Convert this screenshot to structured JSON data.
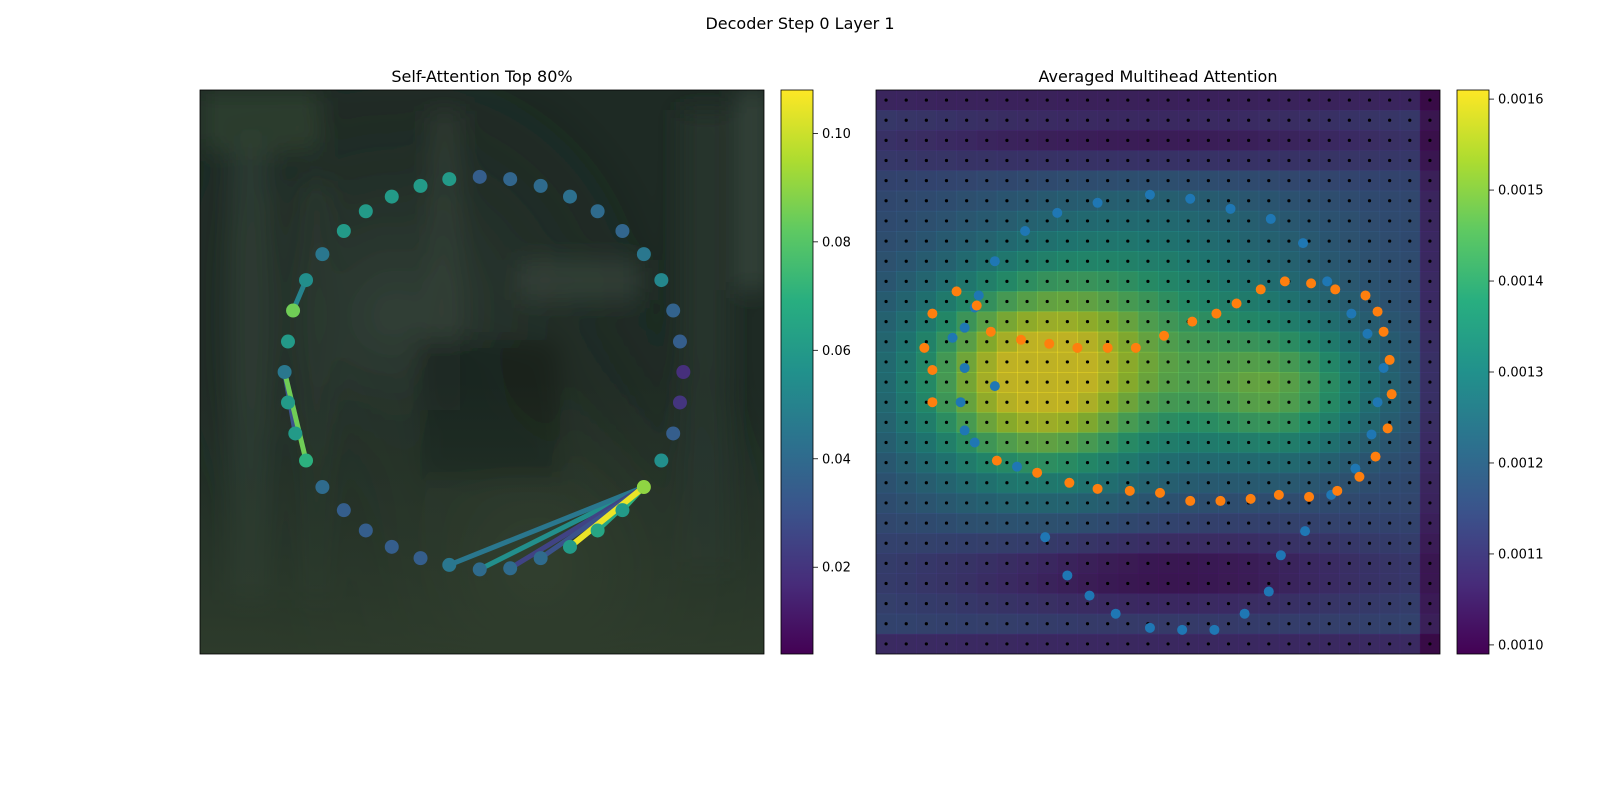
{
  "figure": {
    "suptitle": "Decoder Step 0 Layer 1"
  },
  "chart_data": [
    {
      "type": "scatter",
      "title": "Self-Attention Top 80%",
      "xlim": [
        0,
        100
      ],
      "ylim": [
        0,
        100
      ],
      "colormap": "viridis",
      "colorbar": {
        "min": 0.004,
        "max": 0.108,
        "ticks": [
          0.02,
          0.04,
          0.06,
          0.08,
          0.1
        ],
        "tick_labels": [
          "0.02",
          "0.04",
          "0.06",
          "0.08",
          "0.10"
        ]
      },
      "background": "blurred photograph (dark green scene)",
      "points": [
        {
          "x": 49.6,
          "y": 84.6,
          "v": 0.035
        },
        {
          "x": 55.0,
          "y": 84.2,
          "v": 0.038
        },
        {
          "x": 60.4,
          "y": 83.0,
          "v": 0.04
        },
        {
          "x": 65.6,
          "y": 81.1,
          "v": 0.042
        },
        {
          "x": 70.5,
          "y": 78.5,
          "v": 0.04
        },
        {
          "x": 74.9,
          "y": 75.0,
          "v": 0.038
        },
        {
          "x": 78.7,
          "y": 70.9,
          "v": 0.045
        },
        {
          "x": 81.8,
          "y": 66.3,
          "v": 0.052
        },
        {
          "x": 83.9,
          "y": 60.9,
          "v": 0.037
        },
        {
          "x": 85.1,
          "y": 55.4,
          "v": 0.035
        },
        {
          "x": 85.7,
          "y": 50.0,
          "v": 0.018
        },
        {
          "x": 85.1,
          "y": 44.6,
          "v": 0.02
        },
        {
          "x": 83.9,
          "y": 39.1,
          "v": 0.035
        },
        {
          "x": 81.8,
          "y": 34.3,
          "v": 0.055
        },
        {
          "x": 78.7,
          "y": 29.6,
          "v": 0.09
        },
        {
          "x": 74.9,
          "y": 25.5,
          "v": 0.06
        },
        {
          "x": 70.5,
          "y": 21.9,
          "v": 0.065
        },
        {
          "x": 65.6,
          "y": 19.0,
          "v": 0.06
        },
        {
          "x": 60.4,
          "y": 17.0,
          "v": 0.04
        },
        {
          "x": 55.0,
          "y": 15.2,
          "v": 0.04
        },
        {
          "x": 49.6,
          "y": 15.0,
          "v": 0.04
        },
        {
          "x": 44.2,
          "y": 15.8,
          "v": 0.045
        },
        {
          "x": 39.1,
          "y": 17.0,
          "v": 0.035
        },
        {
          "x": 34.0,
          "y": 19.0,
          "v": 0.035
        },
        {
          "x": 29.4,
          "y": 21.9,
          "v": 0.035
        },
        {
          "x": 25.5,
          "y": 25.5,
          "v": 0.035
        },
        {
          "x": 21.7,
          "y": 29.6,
          "v": 0.04
        },
        {
          "x": 18.8,
          "y": 34.3,
          "v": 0.07
        },
        {
          "x": 16.9,
          "y": 39.1,
          "v": 0.06
        },
        {
          "x": 15.6,
          "y": 44.6,
          "v": 0.06
        },
        {
          "x": 15.0,
          "y": 50.0,
          "v": 0.045
        },
        {
          "x": 15.6,
          "y": 55.4,
          "v": 0.06
        },
        {
          "x": 16.5,
          "y": 60.9,
          "v": 0.085
        },
        {
          "x": 18.8,
          "y": 66.3,
          "v": 0.055
        },
        {
          "x": 21.7,
          "y": 70.9,
          "v": 0.045
        },
        {
          "x": 25.5,
          "y": 75.0,
          "v": 0.06
        },
        {
          "x": 29.4,
          "y": 78.5,
          "v": 0.06
        },
        {
          "x": 34.0,
          "y": 81.1,
          "v": 0.06
        },
        {
          "x": 39.1,
          "y": 83.0,
          "v": 0.06
        },
        {
          "x": 44.2,
          "y": 84.2,
          "v": 0.06
        }
      ],
      "edges": [
        {
          "from": 14,
          "to": 20,
          "v": 0.055
        },
        {
          "from": 14,
          "to": 21,
          "v": 0.045
        },
        {
          "from": 14,
          "to": 19,
          "v": 0.025
        },
        {
          "from": 14,
          "to": 18,
          "v": 0.03
        },
        {
          "from": 14,
          "to": 16,
          "v": 0.065
        },
        {
          "from": 14,
          "to": 15,
          "v": 0.07
        },
        {
          "from": 14,
          "to": 17,
          "v": 0.06
        },
        {
          "from": 30,
          "to": 28,
          "v": 0.03
        },
        {
          "from": 30,
          "to": 27,
          "v": 0.085
        },
        {
          "from": 32,
          "to": 33,
          "v": 0.05
        }
      ],
      "highlight_edge": {
        "from": 14,
        "to": 17,
        "v": 0.105
      }
    },
    {
      "type": "heatmap",
      "title": "Averaged Multihead Attention",
      "xlim": [
        0,
        28
      ],
      "ylim": [
        0,
        28
      ],
      "colormap": "viridis",
      "colorbar": {
        "min": 0.00099,
        "max": 0.00161,
        "ticks": [
          0.001,
          0.0011,
          0.0012,
          0.0013,
          0.0014,
          0.0015,
          0.0016
        ],
        "tick_labels": [
          "0.0010",
          "0.0011",
          "0.0012",
          "0.0013",
          "0.0014",
          "0.0015",
          "0.0016"
        ]
      },
      "grid_points": "28x28 black dots",
      "series": [
        {
          "color": "#1f77b4",
          "points": [
            [
              3.8,
              12.3
            ],
            [
              4.4,
              11.8
            ],
            [
              4.9,
              10.8
            ],
            [
              5.9,
              14.7
            ],
            [
              7.0,
              18.7
            ],
            [
              8.4,
              22.2
            ],
            [
              9.5,
              24.1
            ],
            [
              10.6,
              25.1
            ],
            [
              11.9,
              26.0
            ],
            [
              13.6,
              26.7
            ],
            [
              15.2,
              26.8
            ],
            [
              16.8,
              26.8
            ],
            [
              18.3,
              26.0
            ],
            [
              19.5,
              24.9
            ],
            [
              20.1,
              23.1
            ],
            [
              21.3,
              21.9
            ],
            [
              22.6,
              20.1
            ],
            [
              23.8,
              18.8
            ],
            [
              24.6,
              17.1
            ],
            [
              24.9,
              15.5
            ],
            [
              25.2,
              13.8
            ],
            [
              24.4,
              12.1
            ],
            [
              23.6,
              11.1
            ],
            [
              22.4,
              9.5
            ],
            [
              21.2,
              7.6
            ],
            [
              19.6,
              6.4
            ],
            [
              17.6,
              5.9
            ],
            [
              15.6,
              5.4
            ],
            [
              13.6,
              5.2
            ],
            [
              11.0,
              5.6
            ],
            [
              9.0,
              6.1
            ],
            [
              7.4,
              7.0
            ],
            [
              5.9,
              8.5
            ],
            [
              5.1,
              10.2
            ],
            [
              4.4,
              13.8
            ],
            [
              4.2,
              15.5
            ],
            [
              4.4,
              16.9
            ],
            [
              4.9,
              17.5
            ]
          ]
        },
        {
          "color": "#ff7f0e",
          "points": [
            [
              2.8,
              15.5
            ],
            [
              2.8,
              13.9
            ],
            [
              2.4,
              12.8
            ],
            [
              2.8,
              11.1
            ],
            [
              4.0,
              10.0
            ],
            [
              5.0,
              10.7
            ],
            [
              5.7,
              12.0
            ],
            [
              7.2,
              12.4
            ],
            [
              8.6,
              12.6
            ],
            [
              10.0,
              12.8
            ],
            [
              11.5,
              12.8
            ],
            [
              12.9,
              12.8
            ],
            [
              14.3,
              12.2
            ],
            [
              15.7,
              11.5
            ],
            [
              16.9,
              11.1
            ],
            [
              17.9,
              10.6
            ],
            [
              19.1,
              9.9
            ],
            [
              20.3,
              9.5
            ],
            [
              21.6,
              9.6
            ],
            [
              22.8,
              9.9
            ],
            [
              24.3,
              10.2
            ],
            [
              24.9,
              11.0
            ],
            [
              25.2,
              12.0
            ],
            [
              25.5,
              13.4
            ],
            [
              25.6,
              15.1
            ],
            [
              25.4,
              16.8
            ],
            [
              24.8,
              18.2
            ],
            [
              24.0,
              19.2
            ],
            [
              22.9,
              19.9
            ],
            [
              21.5,
              20.2
            ],
            [
              20.0,
              20.1
            ],
            [
              18.6,
              20.3
            ],
            [
              17.1,
              20.4
            ],
            [
              15.6,
              20.4
            ],
            [
              14.1,
              20.0
            ],
            [
              12.6,
              19.9
            ],
            [
              11.0,
              19.8
            ],
            [
              9.6,
              19.5
            ],
            [
              8.0,
              19.0
            ],
            [
              6.0,
              18.4
            ]
          ]
        }
      ]
    }
  ]
}
